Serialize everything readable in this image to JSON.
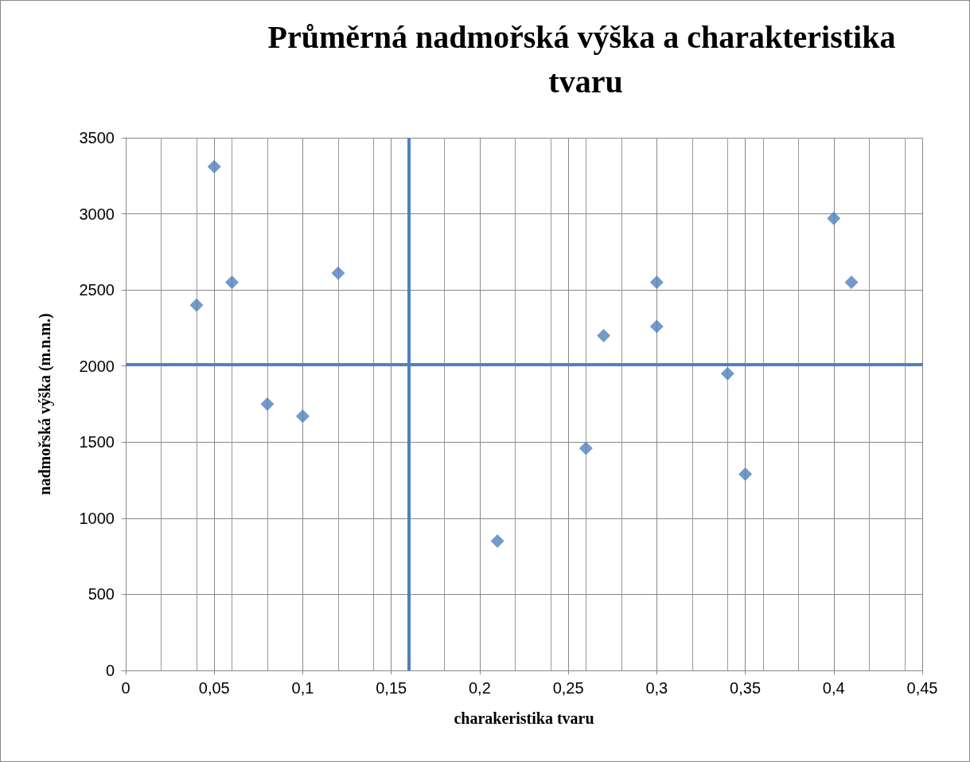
{
  "chart_data": {
    "type": "scatter",
    "title": "Průměrná nadmořská výška a charakteristika tvaru",
    "xlabel": "charakeristika tvaru",
    "ylabel": "nadmořská výška (m.n.m.)",
    "x": [
      0.04,
      0.05,
      0.06,
      0.08,
      0.1,
      0.12,
      0.21,
      0.26,
      0.27,
      0.3,
      0.3,
      0.34,
      0.35,
      0.4,
      0.41
    ],
    "values": [
      2400,
      3310,
      2550,
      1750,
      1670,
      2610,
      850,
      1460,
      2200,
      2550,
      2260,
      1950,
      1290,
      2970,
      2550
    ],
    "color": "#4f81bd",
    "marker": "diamond",
    "xlim": [
      0,
      0.45
    ],
    "xticks": [
      0,
      {
        "value": 0.05,
        "label": "0,05"
      },
      {
        "value": 0.1,
        "label": "0,1"
      },
      {
        "value": 0.15,
        "label": "0,15"
      },
      {
        "value": 0.2,
        "label": "0,2"
      },
      {
        "value": 0.25,
        "label": "0,25"
      },
      {
        "value": 0.3,
        "label": "0,3"
      },
      {
        "value": 0.35,
        "label": "0,35"
      },
      {
        "value": 0.4,
        "label": "0,4"
      },
      {
        "value": 0.45,
        "label": "0,45"
      }
    ],
    "ylim": [
      0,
      3500
    ],
    "yticks": [
      0,
      500,
      1000,
      1500,
      2000,
      2500,
      3000,
      3500
    ],
    "ref_lines": [
      {
        "axis": "x",
        "value": 0.16,
        "color": "#4f81bd"
      },
      {
        "axis": "y",
        "value": 2010,
        "color": "#4f81bd"
      }
    ],
    "grid": true
  }
}
